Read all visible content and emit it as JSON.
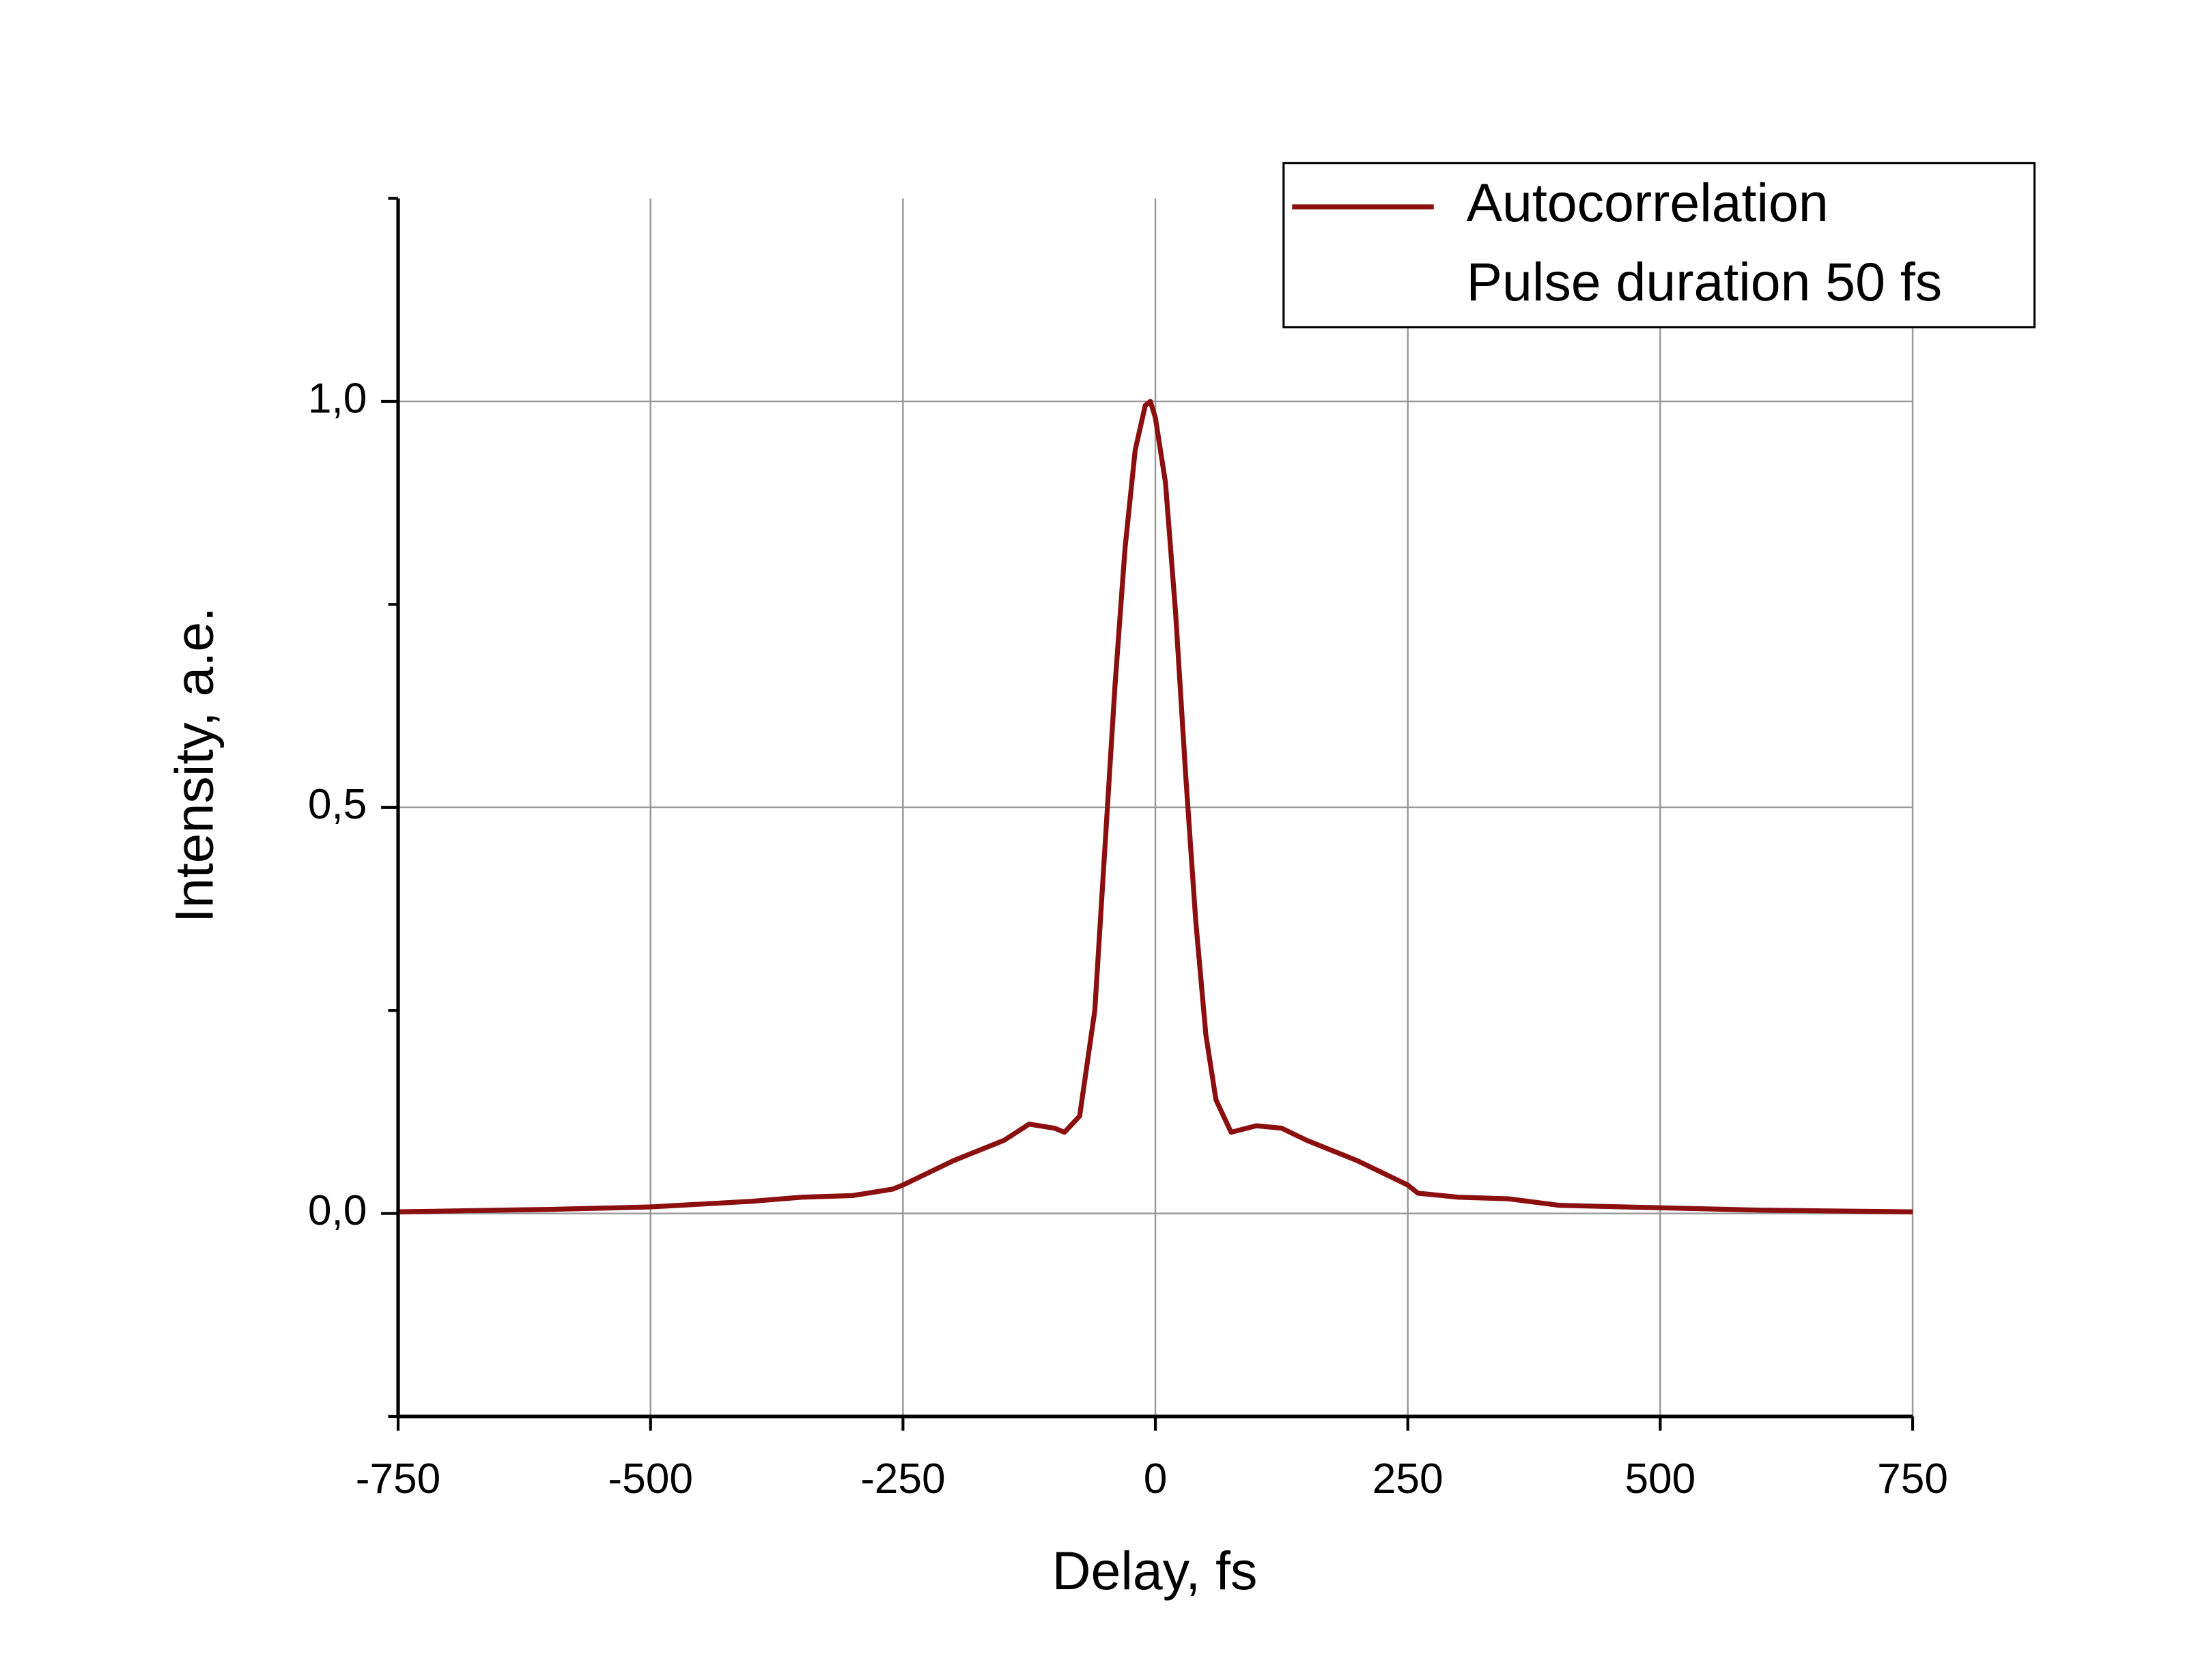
{
  "chart_data": {
    "type": "line",
    "x_label": "Delay, fs",
    "y_label": "Intensity, a.e.",
    "x": [
      -750,
      -600,
      -500,
      -400,
      -350,
      -300,
      -260,
      -250,
      -200,
      -150,
      -125,
      -100,
      -90,
      -75,
      -60,
      -50,
      -40,
      -30,
      -20,
      -10,
      -5,
      0,
      10,
      20,
      30,
      40,
      50,
      60,
      75,
      100,
      125,
      150,
      200,
      250,
      260,
      300,
      350,
      400,
      500,
      600,
      750
    ],
    "series": [
      {
        "name": "Autocorrelation",
        "color": "#8b0f0f",
        "values": [
          0.002,
          0.005,
          0.008,
          0.015,
          0.02,
          0.022,
          0.03,
          0.035,
          0.065,
          0.09,
          0.11,
          0.105,
          0.1,
          0.12,
          0.25,
          0.45,
          0.65,
          0.82,
          0.94,
          0.995,
          1.0,
          0.98,
          0.9,
          0.74,
          0.54,
          0.36,
          0.22,
          0.14,
          0.1,
          0.108,
          0.105,
          0.09,
          0.065,
          0.035,
          0.025,
          0.02,
          0.018,
          0.01,
          0.007,
          0.004,
          0.002
        ]
      }
    ],
    "legend_note": "Pulse duration 50 fs",
    "legend_position": "upper right",
    "xlim": [
      -750,
      750
    ],
    "xticks": [
      -750,
      -500,
      -250,
      0,
      250,
      500,
      750
    ],
    "ylim": [
      -0.25,
      1.25
    ],
    "yticks": [
      {
        "value": 0,
        "label": "0,0"
      },
      {
        "value": 0.5,
        "label": "0,5"
      },
      {
        "value": 1,
        "label": "1,0"
      }
    ],
    "minor_yticks": [
      -0.25,
      0.25,
      0.75,
      1.25
    ],
    "grid": true
  }
}
